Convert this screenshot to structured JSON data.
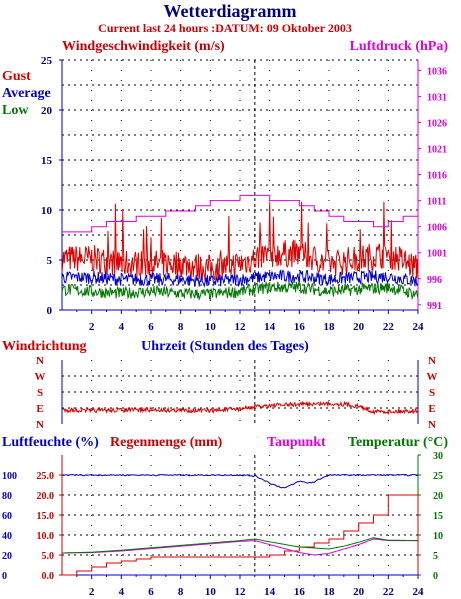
{
  "header": {
    "title": "Wetterdiagramm",
    "subtitle": "Current last 24 hours :DATUM: 09 Oktober 2003"
  },
  "colors": {
    "red": "#dd0000",
    "blue": "#0000cc",
    "green": "#007700",
    "magenta": "#dd00dd",
    "navy": "#000080",
    "darkred": "#cc0000"
  },
  "chart_data": [
    {
      "type": "line",
      "left_axis_label": "Windgeschwindigkeit (m/s)",
      "right_axis_label": "Luftdruck (hPa)",
      "x_range": [
        0,
        24
      ],
      "x_ticks": [
        "2",
        "4",
        "6",
        "8",
        "10",
        "12",
        "14",
        "16",
        "18",
        "20",
        "22",
        "24"
      ],
      "y_left_range": [
        0,
        25
      ],
      "y_left_ticks": [
        "0",
        "5",
        "10",
        "15",
        "20",
        "25"
      ],
      "y_right_range": [
        990,
        1038
      ],
      "y_right_ticks": [
        "991",
        "996",
        "1001",
        "1006",
        "1011",
        "1016",
        "1021",
        "1026",
        "1031",
        "1036"
      ],
      "legend": [
        {
          "name": "Gust",
          "color": "#dd0000"
        },
        {
          "name": "Average",
          "color": "#0000cc"
        },
        {
          "name": "Low",
          "color": "#007700"
        }
      ],
      "series": [
        {
          "name": "Gust",
          "axis": "left",
          "style": "noisy",
          "x": [
            0,
            2,
            4,
            6,
            8,
            10,
            12,
            14,
            16,
            18,
            20,
            22,
            24
          ],
          "values": [
            5,
            5,
            4.5,
            4.5,
            4.5,
            4,
            4.5,
            5.5,
            5.5,
            4.5,
            5,
            5.5,
            4
          ]
        },
        {
          "name": "Average",
          "axis": "left",
          "style": "noisy",
          "x": [
            0,
            2,
            4,
            6,
            8,
            10,
            12,
            14,
            16,
            18,
            20,
            22,
            24
          ],
          "values": [
            3.2,
            3.2,
            3,
            3,
            3,
            2.8,
            3,
            3.3,
            3.3,
            3,
            3.2,
            3.3,
            2.8
          ]
        },
        {
          "name": "Low",
          "axis": "left",
          "style": "noisy",
          "x": [
            0,
            2,
            4,
            6,
            8,
            10,
            12,
            14,
            16,
            18,
            20,
            22,
            24
          ],
          "values": [
            2,
            1.8,
            1.6,
            1.8,
            1.6,
            1.5,
            1.8,
            2.2,
            2.2,
            1.8,
            2,
            2.2,
            1.5
          ]
        },
        {
          "name": "Luftdruck",
          "axis": "right",
          "style": "step",
          "x": [
            0,
            1,
            2,
            3,
            4,
            5,
            6,
            7,
            8,
            9,
            10,
            11,
            12,
            13,
            14,
            15,
            16,
            17,
            18,
            19,
            20,
            21,
            22,
            23,
            24
          ],
          "values": [
            1005,
            1005,
            1006,
            1007,
            1007,
            1008,
            1008,
            1009,
            1009,
            1010,
            1011,
            1011,
            1012,
            1012,
            1011,
            1011,
            1010,
            1009,
            1008,
            1007,
            1007,
            1006,
            1007,
            1008,
            1009
          ]
        }
      ]
    },
    {
      "type": "line",
      "left_axis_label": "Windrichtung",
      "center_label": "Uhrzeit (Stunden des Tages)",
      "x_range": [
        0,
        24
      ],
      "y_categories": [
        "N",
        "W",
        "S",
        "E",
        "N"
      ],
      "series": [
        {
          "name": "Windrichtung",
          "style": "noisy",
          "x": [
            0,
            2,
            4,
            6,
            8,
            10,
            12,
            13,
            14,
            16,
            18,
            19,
            20,
            21,
            22,
            24
          ],
          "values": [
            280,
            285,
            282,
            280,
            283,
            285,
            275,
            265,
            255,
            250,
            245,
            248,
            260,
            290,
            290,
            285
          ]
        }
      ]
    },
    {
      "type": "line",
      "left_axis_label": "Luftfeuchte (%)",
      "left_axis_label_2": "Regenmenge (mm)",
      "center_label": "Taupunkt",
      "right_axis_label": "Temperatur (°C)",
      "x_range": [
        0,
        24
      ],
      "x_ticks": [
        "2",
        "4",
        "6",
        "8",
        "10",
        "12",
        "14",
        "16",
        "18",
        "20",
        "22",
        "24"
      ],
      "humidity_ticks": [
        "0",
        "20",
        "40",
        "60",
        "80",
        "100"
      ],
      "rain_ticks": [
        "0.0",
        "5.0",
        "10.0",
        "15.0",
        "20.0",
        "25.0"
      ],
      "rain_range": [
        0,
        30
      ],
      "temp_ticks": [
        "0",
        "5",
        "10",
        "15",
        "20",
        "25",
        "30"
      ],
      "temp_range": [
        0,
        30
      ],
      "series": [
        {
          "name": "Luftfeuchte",
          "axis": "humidity",
          "style": "noisy",
          "x": [
            0,
            12,
            13,
            13.5,
            14,
            14.5,
            15,
            15.5,
            16,
            16.5,
            17,
            17.5,
            18,
            24
          ],
          "values": [
            100,
            100,
            99,
            96,
            92,
            89,
            87,
            90,
            94,
            92,
            93,
            97,
            100,
            100
          ]
        },
        {
          "name": "Regenmenge",
          "axis": "rain",
          "style": "step",
          "x": [
            0,
            1,
            2,
            3,
            4,
            5,
            6,
            13,
            14,
            15,
            16,
            17,
            18,
            19,
            20,
            21,
            22,
            24
          ],
          "values": [
            0,
            1,
            2,
            3,
            3.5,
            4,
            4.5,
            4.5,
            5,
            6,
            7,
            8,
            9,
            11,
            13,
            15,
            20,
            20
          ]
        },
        {
          "name": "Taupunkt",
          "axis": "temp",
          "style": "smooth",
          "x": [
            0,
            2,
            4,
            6,
            8,
            10,
            12,
            13,
            14,
            15,
            16,
            17,
            18,
            20,
            21,
            22,
            24
          ],
          "values": [
            5.5,
            5.6,
            6.0,
            6.6,
            7.2,
            7.8,
            8.4,
            8.6,
            7.6,
            6.6,
            5.6,
            5.0,
            5.4,
            7.6,
            9.0,
            8.6,
            8.6
          ]
        },
        {
          "name": "Temperatur",
          "axis": "temp",
          "style": "smooth",
          "x": [
            0,
            2,
            4,
            6,
            8,
            10,
            12,
            13,
            14,
            16,
            18,
            19,
            20,
            21,
            22,
            24
          ],
          "values": [
            5.5,
            5.7,
            6.2,
            6.8,
            7.4,
            8.0,
            8.6,
            9.0,
            8.3,
            7.0,
            6.5,
            7.2,
            8.2,
            9.3,
            8.7,
            8.6
          ]
        }
      ]
    }
  ]
}
